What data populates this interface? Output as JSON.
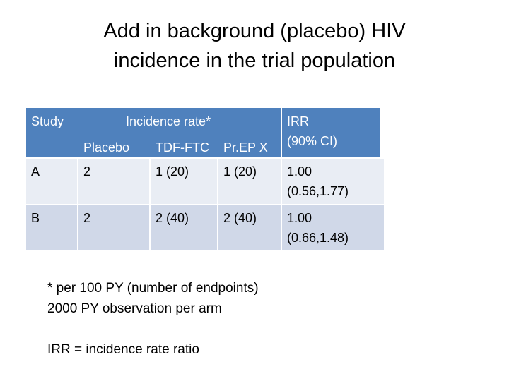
{
  "title": [
    "Add in background (placebo) HIV",
    "incidence in the trial population"
  ],
  "table": {
    "header": {
      "study": "Study",
      "incidence": "Incidence rate*",
      "arms": [
        "Placebo",
        "TDF-FTC",
        "Pr.EP X"
      ],
      "irr": [
        "IRR",
        "(90% CI)"
      ]
    },
    "rows": [
      [
        "A",
        "2",
        "1 (20)",
        "1 (20)",
        [
          "1.00",
          "(0.56,1.77)"
        ]
      ],
      [
        "B",
        "2",
        "2 (40)",
        "2 (40)",
        [
          "1.00",
          "(0.66,1.48)"
        ]
      ]
    ]
  },
  "notes": [
    "* per 100 PY (number of endpoints)",
    "2000 PY observation per arm",
    "IRR = incidence rate ratio"
  ]
}
